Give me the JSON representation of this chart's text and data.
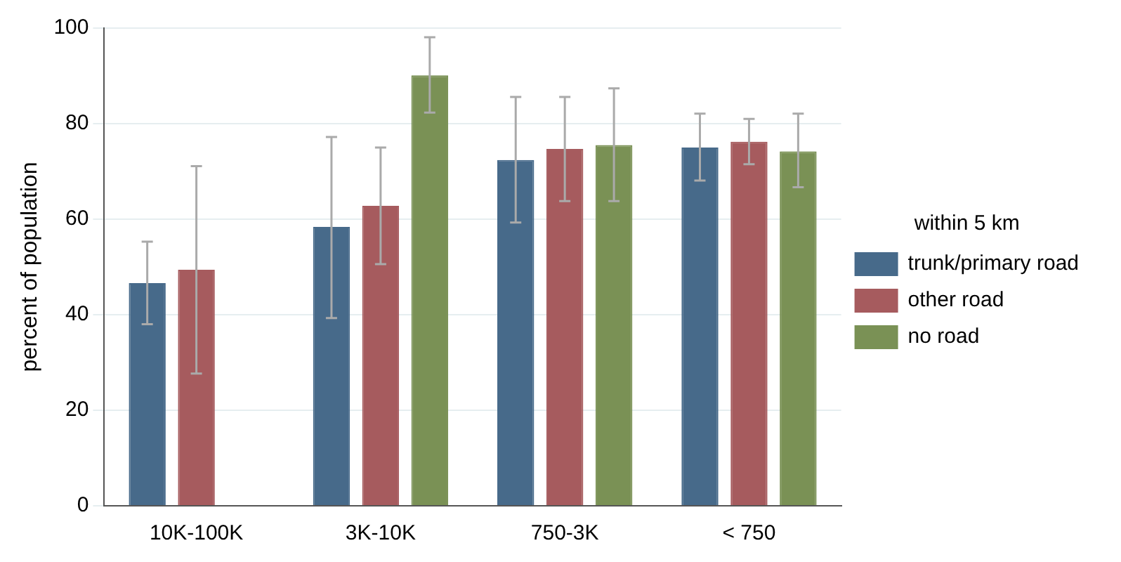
{
  "chart_data": {
    "type": "bar",
    "ylabel": "percent of population",
    "legend_title": "within 5 km",
    "categories": [
      "10K-100K",
      "3K-10K",
      "750-3K",
      "< 750"
    ],
    "series": [
      {
        "name": "trunk/primary road",
        "color": "#476a8a",
        "values": [
          46.6,
          58.4,
          72.4,
          75.0
        ],
        "errors": [
          [
            38.0,
            55.3
          ],
          [
            39.3,
            77.2
          ],
          [
            59.3,
            85.6
          ],
          [
            68.1,
            82.1
          ]
        ]
      },
      {
        "name": "other road",
        "color": "#a65b5e",
        "values": [
          49.4,
          62.8,
          74.7,
          76.2
        ],
        "errors": [
          [
            27.7,
            71.1
          ],
          [
            50.6,
            75.0
          ],
          [
            63.8,
            85.6
          ],
          [
            71.5,
            81.0
          ]
        ]
      },
      {
        "name": "no road",
        "color": "#7a9155",
        "values": [
          null,
          90.1,
          75.5,
          74.2
        ],
        "errors": [
          null,
          [
            82.3,
            98.1
          ],
          [
            63.8,
            87.4
          ],
          [
            66.7,
            82.1
          ]
        ]
      }
    ],
    "ylim": [
      0,
      100
    ],
    "yticks": [
      0,
      20,
      40,
      60,
      80,
      100
    ],
    "grid": "y",
    "legend": "right"
  }
}
